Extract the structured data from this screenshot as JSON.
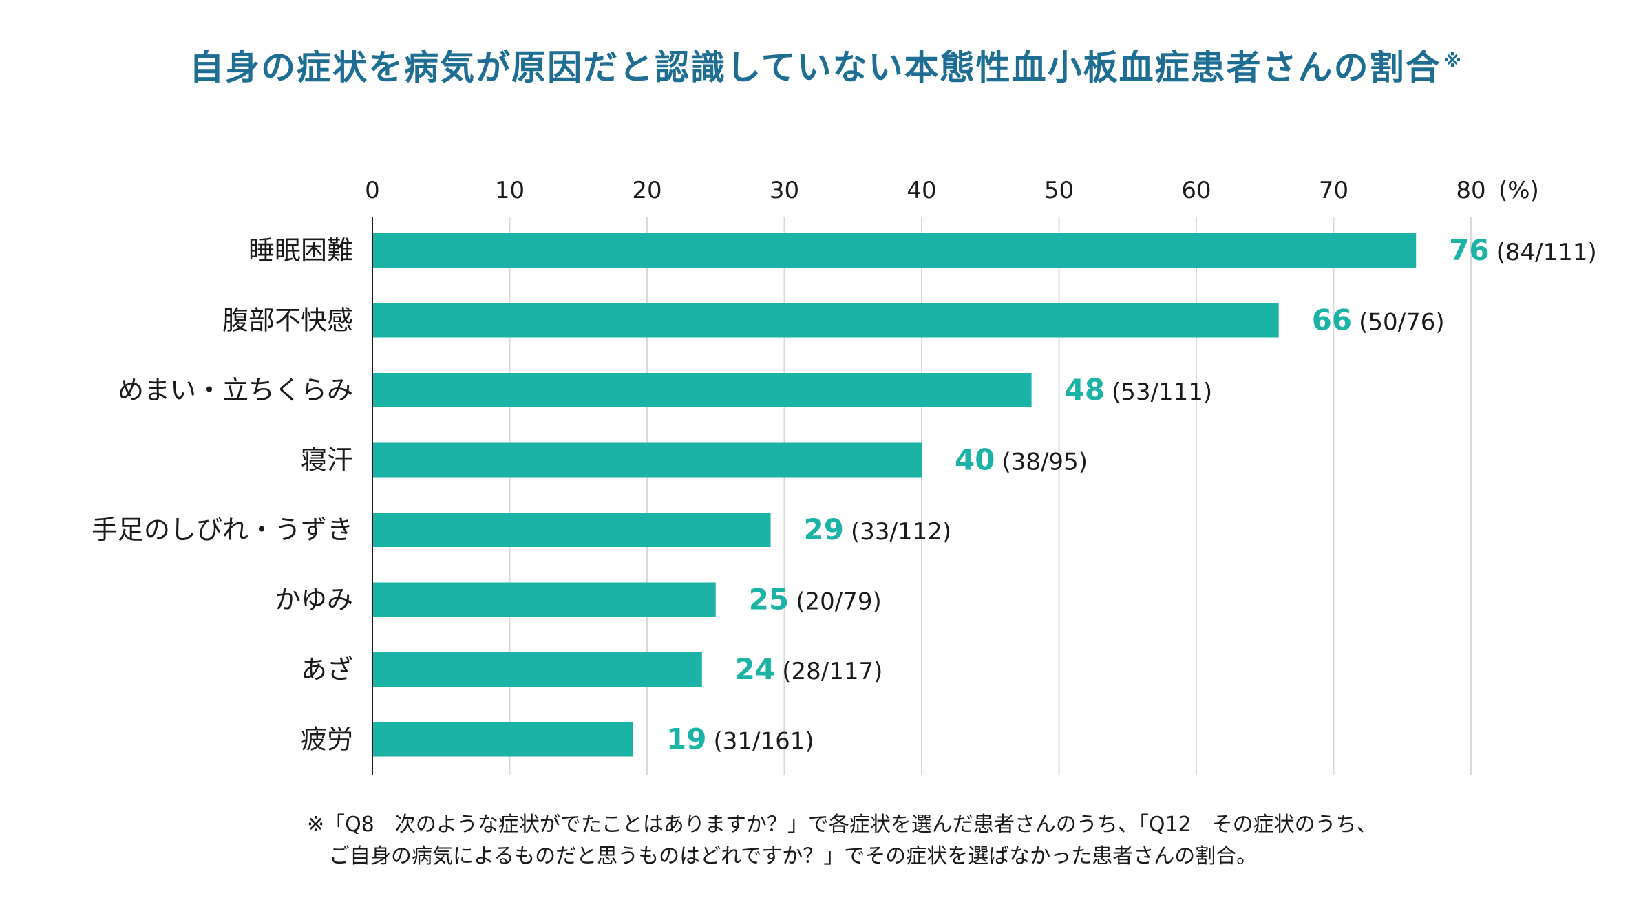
{
  "title": "自身の症状を病気が原因だと認識していない本態性血小板血症患者さんの割合",
  "title_mark": "※",
  "colors": {
    "bar": "#1bb3a6",
    "value_label": "#1bb3a6",
    "title": "#1e6e94",
    "grid": "#d9d9d9",
    "axis": "#1a1a1a"
  },
  "chart_data": {
    "type": "bar",
    "orientation": "horizontal",
    "categories": [
      "睡眠困難",
      "腹部不快感",
      "めまい・立ちくらみ",
      "寝汗",
      "手足のしびれ・うずき",
      "かゆみ",
      "あざ",
      "疲労"
    ],
    "values": [
      76,
      66,
      48,
      40,
      29,
      25,
      24,
      19
    ],
    "counts": [
      "(84/111)",
      "(50/76)",
      "(53/111)",
      "(38/95)",
      "(33/112)",
      "(20/79)",
      "(28/117)",
      "(31/161)"
    ],
    "xlim": [
      0,
      80
    ],
    "xticks": [
      0,
      10,
      20,
      30,
      40,
      50,
      60,
      70,
      80
    ],
    "x_unit": "(%)",
    "grid": true,
    "x_axis_position": "top"
  },
  "footnote": {
    "line1": "※「Q8　次のような症状がでたことはありますか？」で各症状を選んだ患者さんのうち、「Q12　その症状のうち、",
    "line2": "ご自身の病気によるものだと思うものはどれですか？」でその症状を選ばなかった患者さんの割合。"
  }
}
